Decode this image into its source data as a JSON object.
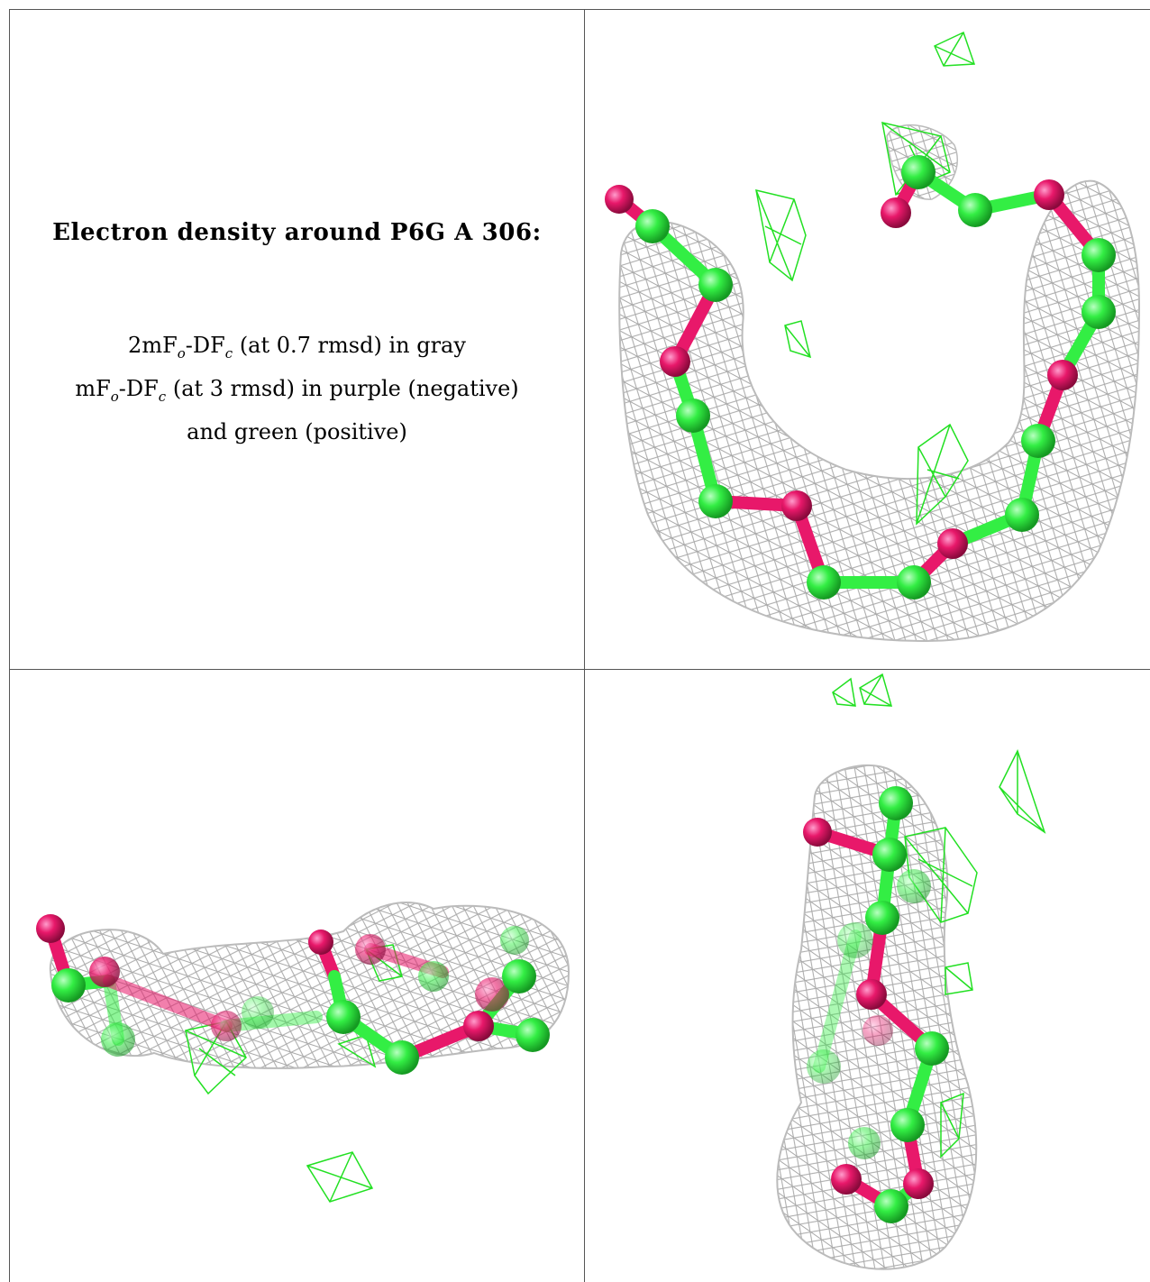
{
  "title": "Electron density around P6G A 306:",
  "legend": {
    "line1": {
      "prefix": "2mF",
      "sub1": "o",
      "mid": "-DF",
      "sub2": "c",
      "suffix": " (at 0.7 rmsd) in gray"
    },
    "line2": {
      "prefix": "mF",
      "sub1": "o",
      "mid": "-DF",
      "sub2": "c",
      "suffix": " (at 3 rmsd) in purple (negative)"
    },
    "line3": "and green (positive)"
  },
  "colors": {
    "mesh_2fofc": "#a8a8a8",
    "mesh_fofc_positive": "#22e022",
    "carbon_atom": "#33ee44",
    "oxygen_atom": "#e8186a"
  },
  "views": [
    "view-1",
    "view-2",
    "view-3"
  ]
}
